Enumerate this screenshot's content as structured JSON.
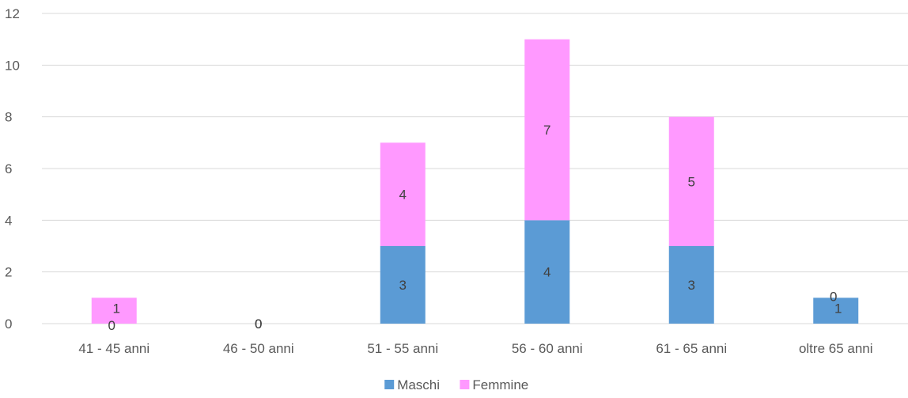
{
  "chart_data": {
    "type": "bar",
    "stacked": true,
    "categories": [
      "41 - 45 anni",
      "46 - 50 anni",
      "51 - 55 anni",
      "56 - 60 anni",
      "61 - 65 anni",
      "oltre 65 anni"
    ],
    "series": [
      {
        "name": "Maschi",
        "values": [
          0,
          0,
          3,
          4,
          3,
          1
        ],
        "color": "#5b9bd5"
      },
      {
        "name": "Femmine",
        "values": [
          1,
          0,
          4,
          7,
          5,
          0
        ],
        "color": "#ff99ff"
      }
    ],
    "title": "",
    "xlabel": "",
    "ylabel": "",
    "ylim": [
      0,
      12
    ],
    "yticks": [
      0,
      2,
      4,
      6,
      8,
      10,
      12
    ],
    "grid": true,
    "legend": "bottom-center",
    "data_labels": true
  }
}
